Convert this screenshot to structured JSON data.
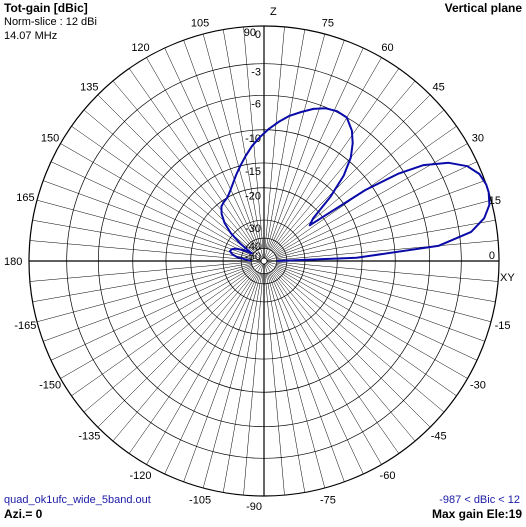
{
  "header": {
    "title": "Tot-gain [dBic]",
    "norm_slice": "Norm-slice : 12 dBi",
    "frequency": "14.07 MHz",
    "plane": "Vertical plane"
  },
  "footer": {
    "filename": "quad_ok1ufc_wide_5band.out",
    "azimuth": "Azi.= 0",
    "gain_range": "-987 < dBic < 12",
    "max_gain": "Max gain Ele:19"
  },
  "colors": {
    "pattern": "#0a0aa8",
    "grid": "#000000",
    "text_blue": "#1a1aa6"
  },
  "chart_data": {
    "type": "polar",
    "axis_labels": {
      "z": "Z",
      "xy": "XY"
    },
    "radial_ticks": [
      "0",
      "-3",
      "-6",
      "-10",
      "-15",
      "-20",
      "-30",
      "-40",
      "-50"
    ],
    "radial_tick_db": [
      0,
      -3,
      -6,
      -10,
      -15,
      -20,
      -30,
      -40,
      -50
    ],
    "angle_labels": [
      {
        "deg": 90,
        "text": "90"
      },
      {
        "deg": 105,
        "text": "105"
      },
      {
        "deg": 120,
        "text": "120"
      },
      {
        "deg": 135,
        "text": "135"
      },
      {
        "deg": 150,
        "text": "150"
      },
      {
        "deg": 165,
        "text": "165"
      },
      {
        "deg": 180,
        "text": "180"
      },
      {
        "deg": -165,
        "text": "-165"
      },
      {
        "deg": -150,
        "text": "-150"
      },
      {
        "deg": -135,
        "text": "-135"
      },
      {
        "deg": -120,
        "text": "-120"
      },
      {
        "deg": -105,
        "text": "-105"
      },
      {
        "deg": -90,
        "text": "-90"
      },
      {
        "deg": -75,
        "text": "-75"
      },
      {
        "deg": -60,
        "text": "-60"
      },
      {
        "deg": -45,
        "text": "-45"
      },
      {
        "deg": -30,
        "text": "-30"
      },
      {
        "deg": -15,
        "text": "-15"
      },
      {
        "deg": 0,
        "text": "0"
      },
      {
        "deg": 15,
        "text": "15"
      },
      {
        "deg": 30,
        "text": "30"
      },
      {
        "deg": 45,
        "text": "45"
      },
      {
        "deg": 60,
        "text": "60"
      },
      {
        "deg": 75,
        "text": "75"
      }
    ],
    "series": [
      {
        "elevation_deg": [
          0,
          2,
          5,
          8,
          11,
          14,
          17,
          19,
          22,
          25,
          28,
          31,
          33,
          35,
          38,
          41,
          44,
          47,
          50,
          53,
          56,
          60,
          64,
          68,
          72,
          76,
          80,
          84,
          88,
          92,
          96,
          100,
          104,
          108,
          112,
          116,
          120,
          124,
          128,
          132,
          136,
          140,
          144,
          148,
          152,
          156,
          160,
          164,
          168,
          172,
          176,
          180
        ],
        "gain_dbic": [
          -50,
          -16,
          -5,
          -2,
          -0.8,
          -0.2,
          0,
          0,
          -0.2,
          -0.8,
          -2,
          -4,
          -6.5,
          -11,
          -24,
          -22,
          -16,
          -12,
          -9.5,
          -8,
          -6.9,
          -6,
          -5.9,
          -6.1,
          -6.6,
          -7.3,
          -8,
          -8.9,
          -9.9,
          -11,
          -12.2,
          -13.6,
          -15,
          -16.4,
          -17.8,
          -19,
          -20,
          -20.4,
          -21,
          -22.5,
          -25,
          -29,
          -36,
          -48,
          -40,
          -35,
          -33,
          -32.5,
          -34,
          -37,
          -45,
          -50
        ]
      }
    ]
  }
}
